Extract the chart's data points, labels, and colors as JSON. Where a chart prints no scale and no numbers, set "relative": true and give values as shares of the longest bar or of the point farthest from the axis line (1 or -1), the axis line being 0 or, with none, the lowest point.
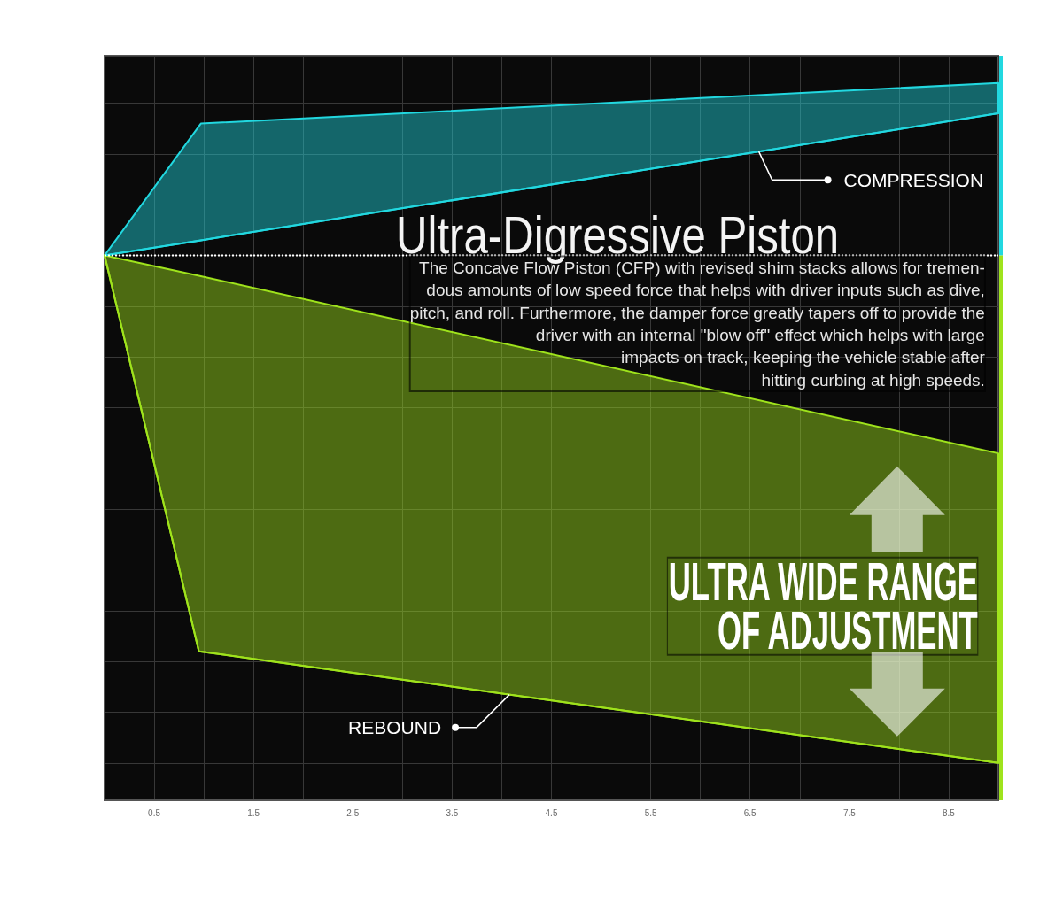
{
  "chart_data": {
    "type": "line",
    "title": "Ultra-Digressive Piston",
    "subtitle": "The Concave Flow Piston (CFP) with revised shim stacks allows for tremen-\ndous amounts of low speed force that helps with driver inputs such as dive,\npitch, and roll. Furthermore, the damper force greatly tapers off to provide the\ndriver with an internal \"blow off\" effect which helps with large\nimpacts on track, keeping the vehicle stable after\nhitting curbing at high speeds.",
    "annotations": [
      "ULTRA WIDE RANGE\nOF ADJUSTMENT"
    ],
    "relative": true,
    "xlim": [
      0,
      9
    ],
    "xticks": [
      {
        "value": 0,
        "label": null
      },
      0.5,
      {
        "value": 1,
        "label": null
      },
      1.5,
      {
        "value": 2,
        "label": null
      },
      2.5,
      {
        "value": 3,
        "label": null
      },
      3.5,
      {
        "value": 4,
        "label": null
      },
      4.5,
      {
        "value": 5,
        "label": null
      },
      5.5,
      {
        "value": 6,
        "label": null
      },
      6.5,
      {
        "value": 7,
        "label": null
      },
      7.5,
      {
        "value": 8,
        "label": null
      },
      8.5,
      {
        "value": 9,
        "label": null
      }
    ],
    "series": [
      {
        "name": "COMPRESSION",
        "color": "#22d8e0",
        "x": [
          0,
          0.97,
          9
        ],
        "values": [
          0,
          0.03,
          0.28
        ],
        "lower": [
          0,
          0.03,
          0.28
        ],
        "upper": [
          0,
          0.26,
          0.34
        ]
      },
      {
        "name": "REBOUND",
        "color": "#9fe31c",
        "x": [
          0,
          0.95,
          9
        ],
        "values": [
          0,
          -0.78,
          -1
        ],
        "lower": [
          0,
          -0.78,
          -1
        ],
        "upper": [
          0,
          -0.04,
          -0.39
        ]
      }
    ],
    "ref_lines": [
      {
        "axis": "y",
        "value": 0,
        "color": "#ffffff",
        "line_style": "dotted"
      }
    ],
    "grid": true
  }
}
